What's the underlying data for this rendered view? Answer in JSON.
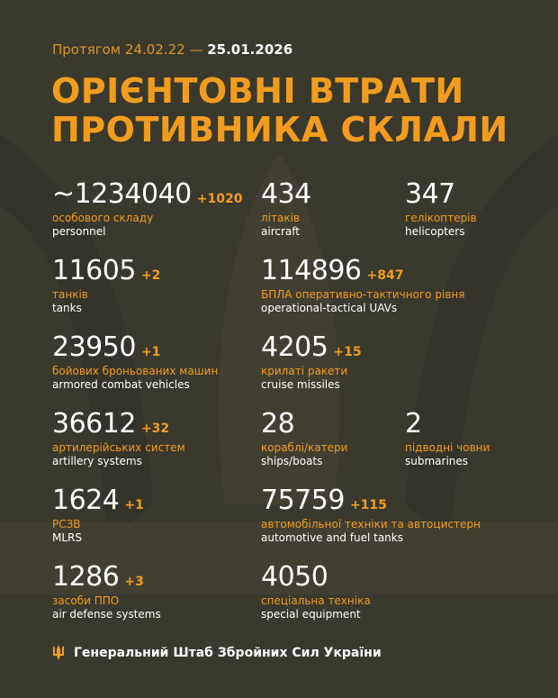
{
  "header": {
    "period_prefix": "Протягом 24.02.22 —",
    "period_end": "25.01.2026",
    "title_line1": "ОРІЄНТОВНІ ВТРАТИ",
    "title_line2": "ПРОТИВНИКА СКЛАЛИ"
  },
  "colors": {
    "background": "#3a392d",
    "accent": "#f29c1f",
    "text": "#ffffff"
  },
  "stats": [
    {
      "value": "~1234040",
      "delta": "+1020",
      "ua": "особового складу",
      "en": "personnel"
    },
    {
      "value": "434",
      "delta": "",
      "ua": "літаків",
      "en": "aircraft"
    },
    {
      "value": "347",
      "delta": "",
      "ua": "гелікоптерів",
      "en": "helicopters"
    },
    {
      "value": "11605",
      "delta": "+2",
      "ua": "танків",
      "en": "tanks"
    },
    {
      "value": "114896",
      "delta": "+847",
      "ua": "БПЛА оперативно-тактичного рівня",
      "en": "operational-tactical UAVs"
    },
    {
      "value": "23950",
      "delta": "+1",
      "ua": "бойових броньованих машин",
      "en": "armored combat vehicles"
    },
    {
      "value": "4205",
      "delta": "+15",
      "ua": "крилаті ракети",
      "en": "cruise missiles"
    },
    {
      "value": "36612",
      "delta": "+32",
      "ua": "артилерійських систем",
      "en": "artillery systems"
    },
    {
      "value": "28",
      "delta": "",
      "ua": "кораблі/катери",
      "en": "ships/boats"
    },
    {
      "value": "2",
      "delta": "",
      "ua": "підводні човни",
      "en": "submarines"
    },
    {
      "value": "1624",
      "delta": "+1",
      "ua": "РСЗВ",
      "en": "MLRS"
    },
    {
      "value": "75759",
      "delta": "+115",
      "ua": "автомобільної техніки та автоцистерн",
      "en": "automotive and fuel tanks"
    },
    {
      "value": "1286",
      "delta": "+3",
      "ua": "засоби ППО",
      "en": "air defense systems"
    },
    {
      "value": "4050",
      "delta": "",
      "ua": "спеціальна техніка",
      "en": "special equipment"
    }
  ],
  "footer": {
    "icon": "trident-icon",
    "text": "Генеральний Штаб Збройних Сил України"
  }
}
